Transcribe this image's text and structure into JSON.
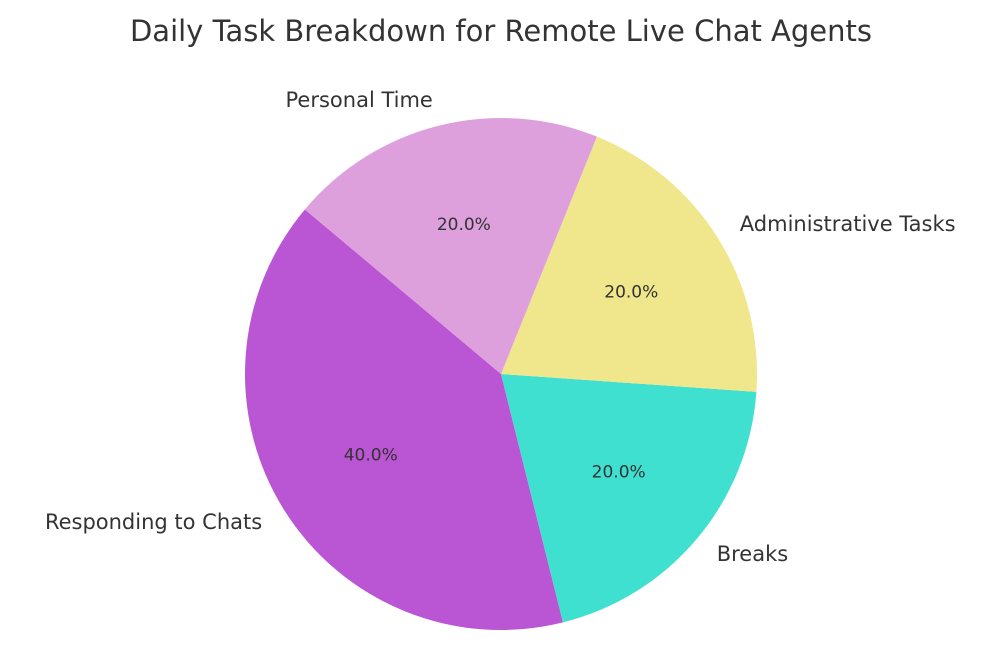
{
  "chart_data": {
    "type": "pie",
    "title": "Daily Task Breakdown for Remote Live Chat Agents",
    "categories": [
      "Responding to Chats",
      "Breaks",
      "Administrative Tasks",
      "Personal Time"
    ],
    "values": [
      40,
      20,
      20,
      20
    ],
    "value_labels": [
      "40.0%",
      "20.0%",
      "20.0%",
      "20.0%"
    ],
    "colors": [
      "#ba55d3",
      "#40e0d0",
      "#f0e68c",
      "#dda0dd"
    ]
  }
}
